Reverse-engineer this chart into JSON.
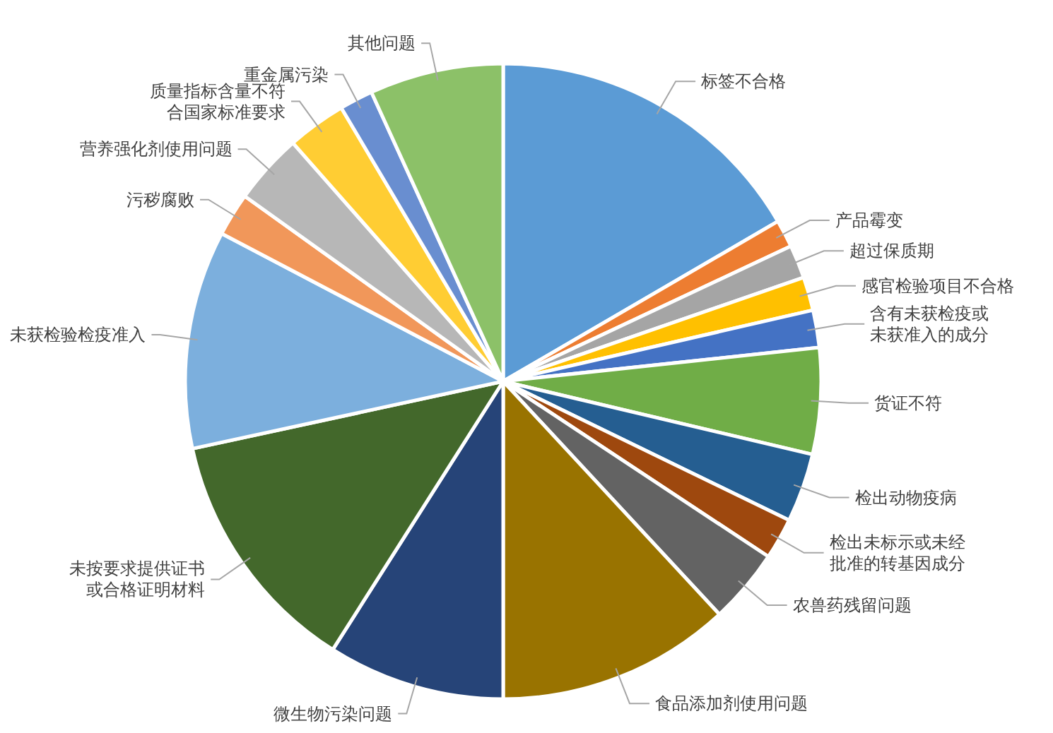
{
  "chart_data": {
    "type": "pie",
    "categories": [
      "标签不合格",
      "产品霉变",
      "超过保质期",
      "感官检验项目不合格",
      "含有未获检疫或未获准入的成分",
      "货证不符",
      "检出动物疫病",
      "检出未标示或未经批准的转基因成分",
      "农兽药残留问题",
      "食品添加剂使用问题",
      "微生物污染问题",
      "未按要求提供证书或合格证明材料",
      "未获检验检疫准入",
      "污秽腐败",
      "营养强化剂使用问题",
      "质量指标含量不符合国家标准要求",
      "重金属污染",
      "其他问题"
    ],
    "values": [
      16.6,
      1.4,
      1.7,
      1.7,
      1.9,
      5.4,
      3.5,
      2.1,
      3.8,
      11.9,
      9.0,
      12.6,
      11.1,
      2.2,
      3.6,
      3.0,
      1.7,
      6.8
    ],
    "colors": [
      "#5b9bd5",
      "#ed7d31",
      "#a5a5a5",
      "#ffc000",
      "#4472c4",
      "#70ad47",
      "#255e91",
      "#9e480e",
      "#636363",
      "#997300",
      "#264478",
      "#43682b",
      "#7cafdd",
      "#f1975a",
      "#b7b7b7",
      "#ffcd33",
      "#698ed0",
      "#8cc168"
    ]
  }
}
